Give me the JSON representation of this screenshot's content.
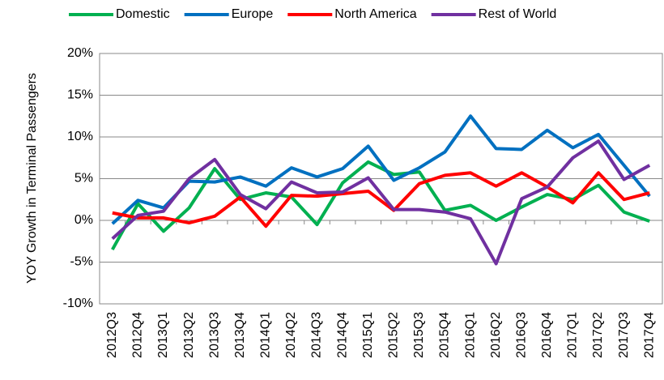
{
  "chart_data": {
    "type": "line",
    "y_label": "YOY Growth in Terminal Passengers",
    "categories": [
      "2012Q3",
      "2012Q4",
      "2013Q1",
      "2013Q2",
      "2013Q3",
      "2013Q4",
      "2014Q1",
      "2014Q2",
      "2014Q3",
      "2014Q4",
      "2015Q1",
      "2015Q2",
      "2015Q3",
      "2015Q4",
      "2016Q1",
      "2016Q2",
      "2016Q3",
      "2016Q4",
      "2017Q1",
      "2017Q2",
      "2017Q3",
      "2017Q4"
    ],
    "series": [
      {
        "name": "Domestic",
        "color": "#00b050",
        "values": [
          -3.5,
          2.0,
          -1.3,
          1.5,
          6.2,
          2.5,
          3.3,
          2.8,
          -0.5,
          4.5,
          7.0,
          5.5,
          5.8,
          1.2,
          1.8,
          0.0,
          1.6,
          3.1,
          2.5,
          4.2,
          1.0,
          -0.1
        ]
      },
      {
        "name": "Europe",
        "color": "#0070c0",
        "values": [
          -0.4,
          2.4,
          1.5,
          4.7,
          4.6,
          5.2,
          4.1,
          6.3,
          5.2,
          6.2,
          8.9,
          4.8,
          6.3,
          8.2,
          12.5,
          8.6,
          8.5,
          10.8,
          8.7,
          10.3,
          6.6,
          2.9
        ]
      },
      {
        "name": "North America",
        "color": "#ff0000",
        "values": [
          0.9,
          0.3,
          0.3,
          -0.3,
          0.5,
          2.8,
          -0.7,
          3.0,
          2.9,
          3.2,
          3.5,
          1.2,
          4.4,
          5.4,
          5.7,
          4.1,
          5.7,
          4.0,
          2.1,
          5.7,
          2.5,
          3.3
        ]
      },
      {
        "name": "Rest of World",
        "color": "#7030a0",
        "values": [
          -2.2,
          0.6,
          1.1,
          5.0,
          7.3,
          3.1,
          1.4,
          4.6,
          3.3,
          3.4,
          5.1,
          1.3,
          1.3,
          1.0,
          0.2,
          -5.2,
          2.6,
          4.0,
          7.5,
          9.5,
          4.9,
          6.6
        ]
      }
    ],
    "ylim": [
      -10,
      20
    ],
    "yticks": [
      {
        "value": -10,
        "label": "-10%"
      },
      {
        "value": -5,
        "label": "-5%"
      },
      {
        "value": 0,
        "label": "0%"
      },
      {
        "value": 5,
        "label": "5%"
      },
      {
        "value": 10,
        "label": "10%"
      },
      {
        "value": 15,
        "label": "15%"
      },
      {
        "value": 20,
        "label": "20%"
      }
    ],
    "grid": true,
    "legend": "top"
  }
}
